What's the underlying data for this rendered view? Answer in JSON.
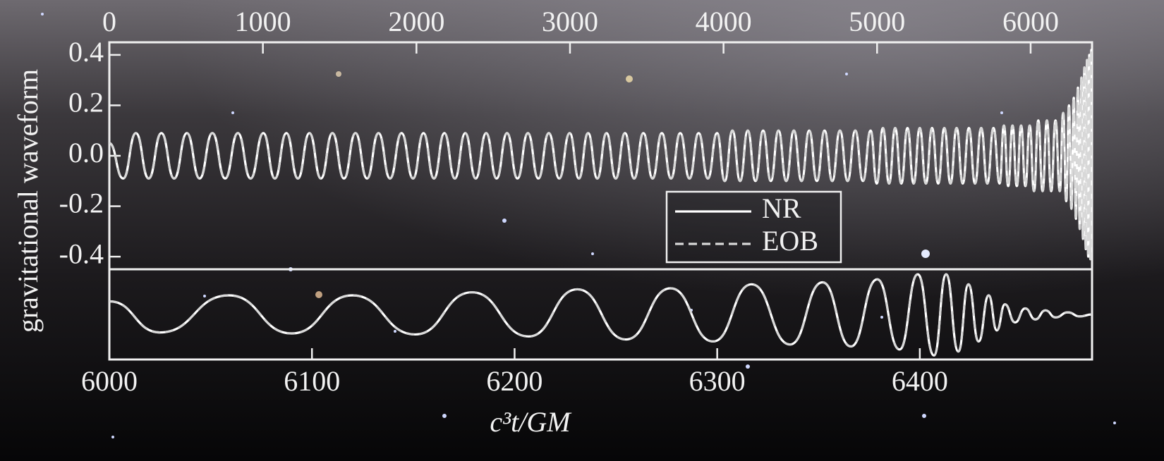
{
  "chart_data": [
    {
      "type": "line",
      "ylabel": "gravitational waveform",
      "xlim": [
        0,
        6400
      ],
      "xticks": [
        0,
        1000,
        2000,
        3000,
        4000,
        5000,
        6000
      ],
      "ylim": [
        -0.45,
        0.45
      ],
      "yticks": [
        0.4,
        0.2,
        {
          "value": 0,
          "label": "0.0"
        },
        -0.2,
        -0.4
      ],
      "legend": true,
      "x": [
        0,
        90,
        173,
        256,
        339,
        422,
        505,
        588,
        671,
        754,
        837,
        920,
        1003,
        1078,
        1153,
        1228,
        1303,
        1378,
        1453,
        1528,
        1603,
        1678,
        1753,
        1828,
        1903,
        1978,
        2046,
        2114,
        2182,
        2250,
        2318,
        2386,
        2454,
        2522,
        2590,
        2658,
        2726,
        2794,
        2862,
        2930,
        2998,
        3058,
        3118,
        3178,
        3238,
        3298,
        3358,
        3418,
        3478,
        3538,
        3598,
        3658,
        3718,
        3778,
        3838,
        3898,
        3958,
        4008,
        4058,
        4108,
        4158,
        4208,
        4258,
        4308,
        4358,
        4408,
        4458,
        4508,
        4558,
        4608,
        4658,
        4708,
        4758,
        4808,
        4858,
        4908,
        4958,
        4998,
        5038,
        5078,
        5118,
        5158,
        5198,
        5238,
        5278,
        5318,
        5358,
        5398,
        5438,
        5478,
        5518,
        5558,
        5598,
        5638,
        5678,
        5718,
        5758,
        5798,
        5826,
        5854,
        5882,
        5910,
        5938,
        5966,
        5994,
        6022,
        6050,
        6078,
        6106,
        6134,
        6162,
        6190,
        6212,
        6232,
        6250,
        6266,
        6281,
        6295,
        6308,
        6320,
        6331,
        6341,
        6350,
        6359,
        6367,
        6375,
        6382,
        6389,
        6395,
        6400
      ],
      "series": [
        {
          "name": "NR",
          "color": "#ffffff",
          "dashed": false,
          "values": [
            0.05,
            -0.09,
            0.09,
            -0.09,
            0.09,
            -0.09,
            0.09,
            -0.09,
            0.09,
            -0.09,
            0.09,
            -0.09,
            0.09,
            -0.09,
            0.09,
            -0.09,
            0.09,
            -0.09,
            0.09,
            -0.09,
            0.09,
            -0.09,
            0.09,
            -0.09,
            0.09,
            -0.09,
            0.09,
            -0.09,
            0.09,
            -0.09,
            0.09,
            -0.09,
            0.09,
            -0.09,
            0.09,
            -0.09,
            0.09,
            -0.09,
            0.09,
            -0.09,
            0.09,
            -0.09,
            0.09,
            -0.09,
            0.09,
            -0.09,
            0.09,
            -0.09,
            0.09,
            -0.09,
            0.09,
            -0.09,
            0.09,
            -0.09,
            0.09,
            -0.09,
            0.09,
            -0.1,
            0.1,
            -0.1,
            0.1,
            -0.1,
            0.1,
            -0.1,
            0.1,
            -0.1,
            0.1,
            -0.1,
            0.1,
            -0.1,
            0.1,
            -0.1,
            0.1,
            -0.1,
            0.1,
            -0.1,
            0.1,
            -0.11,
            0.11,
            -0.11,
            0.11,
            -0.11,
            0.11,
            -0.11,
            0.11,
            -0.11,
            0.11,
            -0.11,
            0.11,
            -0.11,
            0.11,
            -0.11,
            0.11,
            -0.11,
            0.11,
            -0.11,
            0.11,
            -0.11,
            0.12,
            -0.12,
            0.12,
            -0.12,
            0.12,
            -0.12,
            0.12,
            -0.14,
            0.14,
            -0.14,
            0.14,
            -0.14,
            0.14,
            -0.14,
            0.17,
            -0.18,
            0.2,
            -0.21,
            0.23,
            -0.25,
            0.27,
            -0.29,
            0.31,
            -0.33,
            0.35,
            -0.37,
            0.38,
            -0.4,
            0.4,
            -0.41,
            0.42,
            0
          ]
        },
        {
          "name": "EOB",
          "color": "#d8d8d8",
          "dashed": true,
          "values": [
            0.05,
            -0.09,
            0.09,
            -0.09,
            0.09,
            -0.09,
            0.09,
            -0.09,
            0.09,
            -0.09,
            0.09,
            -0.09,
            0.09,
            -0.09,
            0.09,
            -0.09,
            0.09,
            -0.09,
            0.09,
            -0.09,
            0.09,
            -0.09,
            0.09,
            -0.09,
            0.09,
            -0.09,
            0.09,
            -0.09,
            0.09,
            -0.09,
            0.09,
            -0.09,
            0.09,
            -0.09,
            0.09,
            -0.09,
            0.09,
            -0.09,
            0.09,
            -0.09,
            0.09,
            -0.09,
            0.09,
            -0.09,
            0.09,
            -0.09,
            0.09,
            -0.09,
            0.09,
            -0.09,
            0.09,
            -0.09,
            0.09,
            -0.09,
            0.09,
            -0.09,
            0.09,
            -0.1,
            0.1,
            -0.1,
            0.1,
            -0.1,
            0.1,
            -0.1,
            0.1,
            -0.1,
            0.1,
            -0.1,
            0.1,
            -0.1,
            0.1,
            -0.1,
            0.1,
            -0.1,
            0.1,
            -0.1,
            0.1,
            -0.11,
            0.11,
            -0.11,
            0.11,
            -0.11,
            0.11,
            -0.11,
            0.11,
            -0.11,
            0.11,
            -0.11,
            0.11,
            -0.11,
            0.11,
            -0.11,
            0.11,
            -0.11,
            0.11,
            -0.11,
            0.11,
            -0.11,
            0.12,
            -0.12,
            0.12,
            -0.12,
            0.12,
            -0.12,
            0.12,
            -0.14,
            0.14,
            -0.14,
            0.14,
            -0.14,
            0.14,
            -0.14,
            0.17,
            -0.18,
            0.2,
            -0.21,
            0.23,
            -0.25,
            0.27,
            -0.29,
            0.31,
            -0.33,
            0.35,
            -0.37,
            0.38,
            -0.4,
            0.4,
            -0.41,
            0.42,
            0
          ]
        }
      ]
    },
    {
      "type": "line",
      "xlabel": "c³t/GM",
      "xlim": [
        6000,
        6485
      ],
      "xticks": [
        6000,
        6100,
        6200,
        6300,
        6400
      ],
      "ylim": [
        -0.45,
        0.45
      ],
      "x": [
        6000,
        6025,
        6059,
        6090,
        6120,
        6151,
        6179,
        6207,
        6231,
        6255,
        6277,
        6298,
        6317,
        6336,
        6352,
        6366,
        6379,
        6390,
        6399,
        6407,
        6413,
        6419,
        6424,
        6429,
        6434,
        6438,
        6442,
        6447,
        6452,
        6457,
        6462,
        6467,
        6473,
        6479,
        6485
      ],
      "series": [
        {
          "name": "NR",
          "color": "#ffffff",
          "dashed": false,
          "values": [
            0.13,
            -0.18,
            0.19,
            -0.19,
            0.19,
            -0.2,
            0.22,
            -0.22,
            0.25,
            -0.25,
            0.26,
            -0.27,
            0.3,
            -0.3,
            0.32,
            -0.32,
            0.35,
            -0.35,
            0.4,
            -0.41,
            0.4,
            -0.37,
            0.3,
            -0.27,
            0.19,
            -0.16,
            0.1,
            -0.08,
            0.06,
            -0.05,
            0.04,
            -0.03,
            0.02,
            -0.02,
            0
          ]
        },
        {
          "name": "EOB",
          "color": "#d8d8d8",
          "dashed": true,
          "values": [
            0.13,
            -0.18,
            0.19,
            -0.19,
            0.19,
            -0.2,
            0.22,
            -0.22,
            0.25,
            -0.25,
            0.26,
            -0.27,
            0.3,
            -0.3,
            0.32,
            -0.32,
            0.35,
            -0.35,
            0.4,
            -0.41,
            0.4,
            -0.37,
            0.3,
            -0.27,
            0.19,
            -0.16,
            0.1,
            -0.08,
            0.06,
            -0.05,
            0.04,
            -0.03,
            0.02,
            -0.02,
            0
          ]
        }
      ]
    }
  ]
}
